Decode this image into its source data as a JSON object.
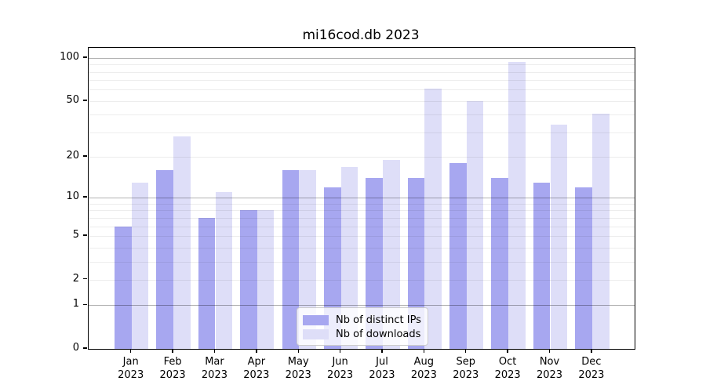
{
  "title": "mi16cod.db 2023",
  "chart_data": {
    "type": "bar",
    "categories": [
      "Jan",
      "Feb",
      "Mar",
      "Apr",
      "May",
      "Jun",
      "Jul",
      "Aug",
      "Sep",
      "Oct",
      "Nov",
      "Dec"
    ],
    "category_year": "2023",
    "series": [
      {
        "name": "Nb of distinct IPs",
        "color": "#a7a7f0",
        "values": [
          6,
          16,
          7,
          8,
          16,
          12,
          14,
          14,
          18,
          14,
          13,
          12
        ]
      },
      {
        "name": "Nb of downloads",
        "color": "#dedef8",
        "values": [
          13,
          28,
          11,
          8,
          16,
          17,
          19,
          61,
          50,
          94,
          34,
          41
        ]
      }
    ],
    "yscale": "log10(value+1)",
    "ylim": [
      0,
      118
    ],
    "ytick_values": [
      100,
      50,
      20,
      10,
      5,
      2,
      1,
      0
    ],
    "ytick_labels": [
      "100",
      "50",
      "20",
      "10",
      "5",
      "2",
      "1",
      "0"
    ],
    "major_grid_values": [
      1,
      10,
      100
    ],
    "minor_grid_values": [
      2,
      3,
      4,
      5,
      6,
      7,
      8,
      9,
      20,
      30,
      40,
      50,
      60,
      70,
      80,
      90
    ],
    "grid": true,
    "legend_position": "bottom-center",
    "xlabel": "",
    "ylabel": ""
  }
}
